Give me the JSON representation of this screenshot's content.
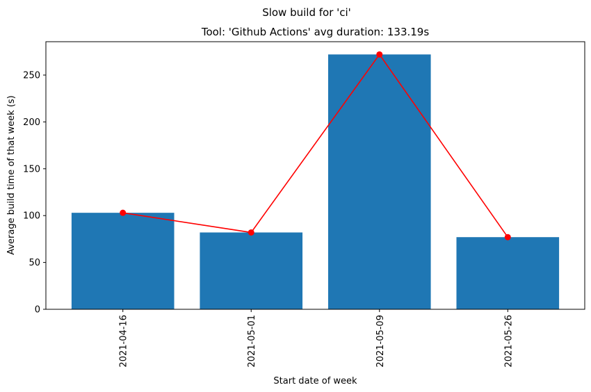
{
  "chart_data": {
    "type": "bar",
    "suptitle": "Slow build for 'ci'",
    "title": "Tool: 'Github Actions' avg duration: 133.19s",
    "xlabel": "Start date of week",
    "ylabel": "Average build time of that week (s)",
    "categories": [
      "2021-04-16",
      "2021-05-01",
      "2021-05-09",
      "2021-05-26"
    ],
    "values": [
      103,
      82,
      272,
      77
    ],
    "line_values": [
      103,
      82,
      272,
      77
    ],
    "ylim": [
      0,
      285.6
    ],
    "yticks": [
      0,
      50,
      100,
      150,
      200,
      250
    ],
    "grid": false,
    "bar_color": "#1f77b4",
    "line_color": "#ff0000"
  }
}
